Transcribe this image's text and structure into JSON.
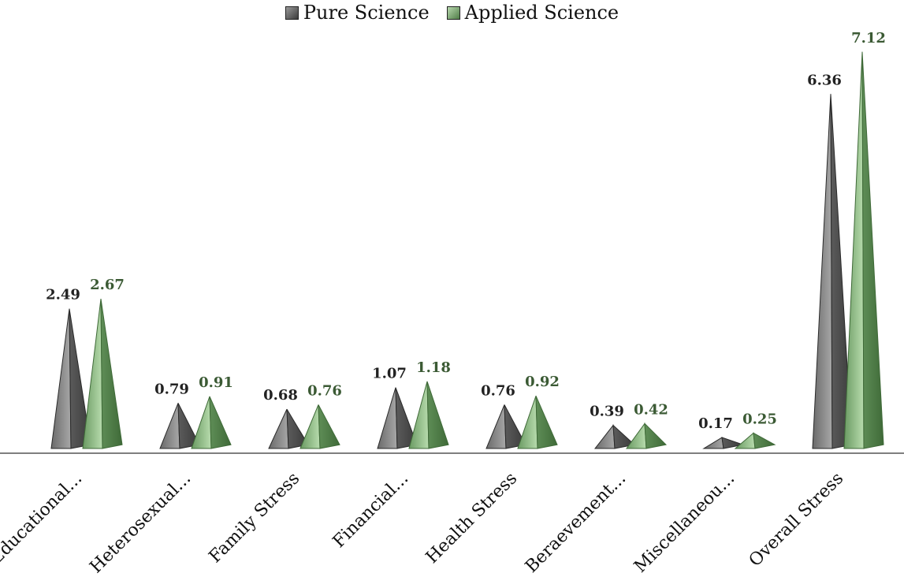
{
  "chart_data": {
    "type": "bar",
    "categories": [
      "Educational...",
      "Heterosexual...",
      "Family Stress",
      "Financial...",
      "Health Stress",
      "Beraevement...",
      "Miscellaneou...",
      "Overall Stress"
    ],
    "series": [
      {
        "name": "Pure Science",
        "values": [
          2.49,
          0.79,
          0.68,
          1.07,
          0.76,
          0.39,
          0.17,
          6.36
        ],
        "color": "#5a5a5a"
      },
      {
        "name": "Applied Science",
        "values": [
          2.67,
          0.91,
          0.76,
          1.18,
          0.92,
          0.42,
          0.25,
          7.12
        ],
        "color": "#7aa772"
      }
    ],
    "data_labels": {
      "Pure Science": [
        "2.49",
        "0.79",
        "0.68",
        "1.07",
        "0.76",
        "0.39",
        "0.17",
        "6.36"
      ],
      "Applied Science": [
        "2.67",
        "0.91",
        "0.76",
        "1.18",
        "0.92",
        "0.42",
        "0.25",
        "7.12"
      ]
    },
    "title": "",
    "xlabel": "",
    "ylabel": "",
    "ylim": [
      0,
      7.5
    ],
    "grid": false,
    "legend_position": "top",
    "mark_shape": "pyramid",
    "label_colors": {
      "Pure Science": "#222222",
      "Applied Science": "#3b5a34"
    }
  }
}
